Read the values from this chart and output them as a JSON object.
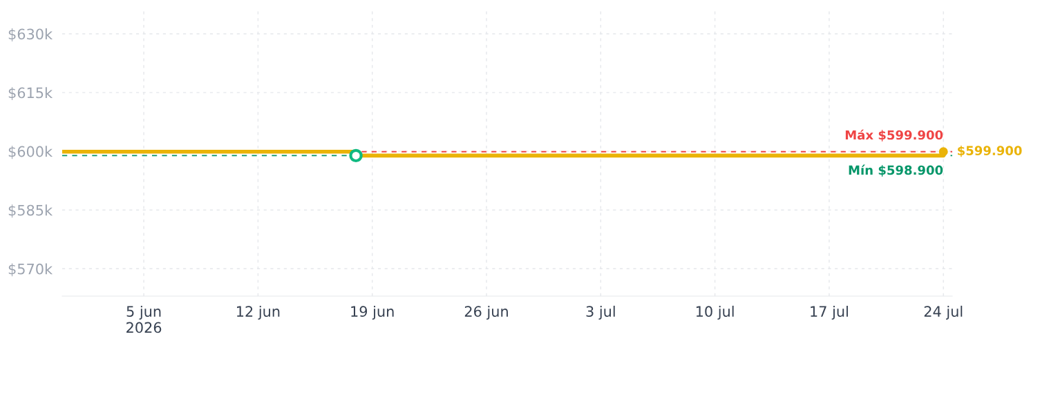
{
  "chart_data": {
    "type": "step",
    "x": [
      "2026-05-31",
      "2026-06-18",
      "2026-07-24"
    ],
    "series": [
      {
        "color": "#eab308",
        "values": [
          599900,
          598900,
          598900
        ],
        "marker": "none"
      },
      {
        "type": "scatter",
        "color": "#10b981",
        "x": [
          "2026-06-18"
        ],
        "values": [
          598900
        ],
        "marker": "circle"
      },
      {
        "type": "scatter",
        "color": "#eab308",
        "x": [
          "2026-07-24"
        ],
        "values": [
          599900
        ],
        "marker": "circle",
        "value_labels": [
          "$599.900"
        ]
      }
    ],
    "xlim": [
      "2026-05-31",
      "2026-07-24T13:00"
    ],
    "xticks": [
      {
        "value": "2026-06-05",
        "label": "5 jun\n2026"
      },
      {
        "value": "2026-06-12",
        "label": "12 jun"
      },
      {
        "value": "2026-06-19",
        "label": "19 jun"
      },
      {
        "value": "2026-06-26",
        "label": "26 jun"
      },
      {
        "value": "2026-07-03",
        "label": "3 jul"
      },
      {
        "value": "2026-07-10",
        "label": "10 jul"
      },
      {
        "value": "2026-07-17",
        "label": "17 jul"
      },
      {
        "value": "2026-07-24",
        "label": "24 jul"
      }
    ],
    "ylim": [
      563000,
      636000
    ],
    "yticks": [
      {
        "value": 570000,
        "label": "$570k"
      },
      {
        "value": 585000,
        "label": "$585k"
      },
      {
        "value": 600000,
        "label": "$600k"
      },
      {
        "value": 615000,
        "label": "$615k"
      },
      {
        "value": 630000,
        "label": "$630k"
      }
    ],
    "ref_lines": [
      {
        "axis": "y",
        "value": 599900,
        "label": "Máx $599.900",
        "color": "#ef4444",
        "line_style": "dashed"
      },
      {
        "axis": "y",
        "value": 598900,
        "label": "Mín $598.900",
        "color": "#059669",
        "line_style": "dashed"
      }
    ],
    "grid": true,
    "legend": false
  }
}
